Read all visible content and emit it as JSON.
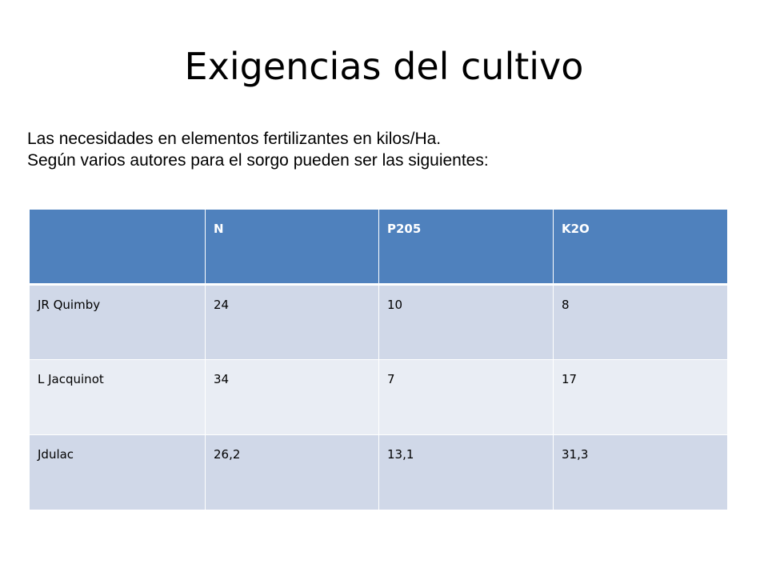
{
  "title": "Exigencias del cultivo",
  "subtitle": {
    "line1": "Las necesidades en elementos fertilizantes en kilos/Ha.",
    "line2": "Según varios autores para el sorgo pueden ser las siguientes:"
  },
  "table": {
    "headers": [
      "",
      "N",
      "P205",
      "K2O"
    ],
    "rows": [
      [
        "JR Quimby",
        "24",
        "10",
        "8"
      ],
      [
        "L Jacquinot",
        "34",
        "7",
        "17"
      ],
      [
        "Jdulac",
        "26,2",
        "13,1",
        "31,3"
      ]
    ]
  },
  "colors": {
    "header_bg": "#4f81bd",
    "row_odd_bg": "#d0d8e8",
    "row_even_bg": "#e9edf4"
  }
}
